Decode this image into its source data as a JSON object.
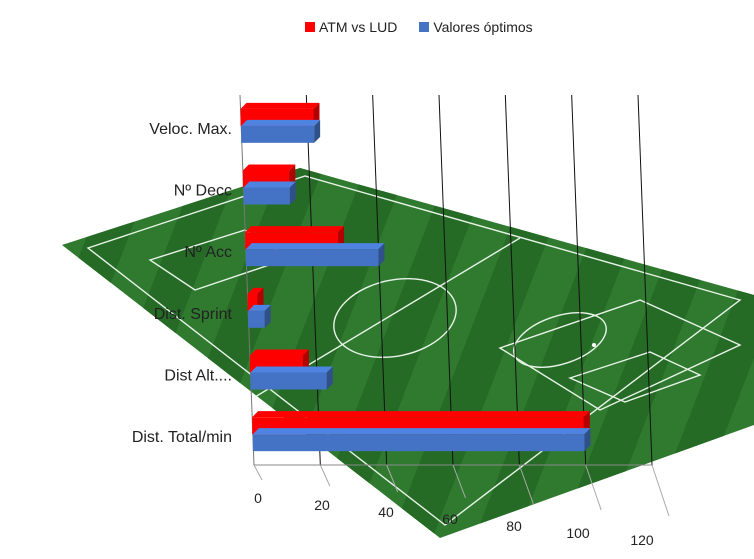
{
  "chart_data": {
    "type": "bar",
    "orientation": "horizontal",
    "style": "3d-clustered",
    "background": "soccer-pitch-image",
    "categories": [
      "Dist. Total/min",
      "Dist Alt....",
      "Dist. Sprint",
      "Nº Acc",
      "Nº Decc",
      "Veloc. Max."
    ],
    "series": [
      {
        "name": "ATM vs LUD",
        "color": "#FF0000",
        "values": [
          100,
          16,
          3,
          28,
          14,
          22
        ]
      },
      {
        "name": "Valores óptimos",
        "color": "#4472C4",
        "values": [
          100,
          23,
          5,
          40,
          14,
          22
        ]
      }
    ],
    "xlim": [
      0,
      120
    ],
    "xticks": [
      "0",
      "20",
      "40",
      "60",
      "80",
      "100",
      "120"
    ],
    "grid": true,
    "legend_position": "top"
  }
}
